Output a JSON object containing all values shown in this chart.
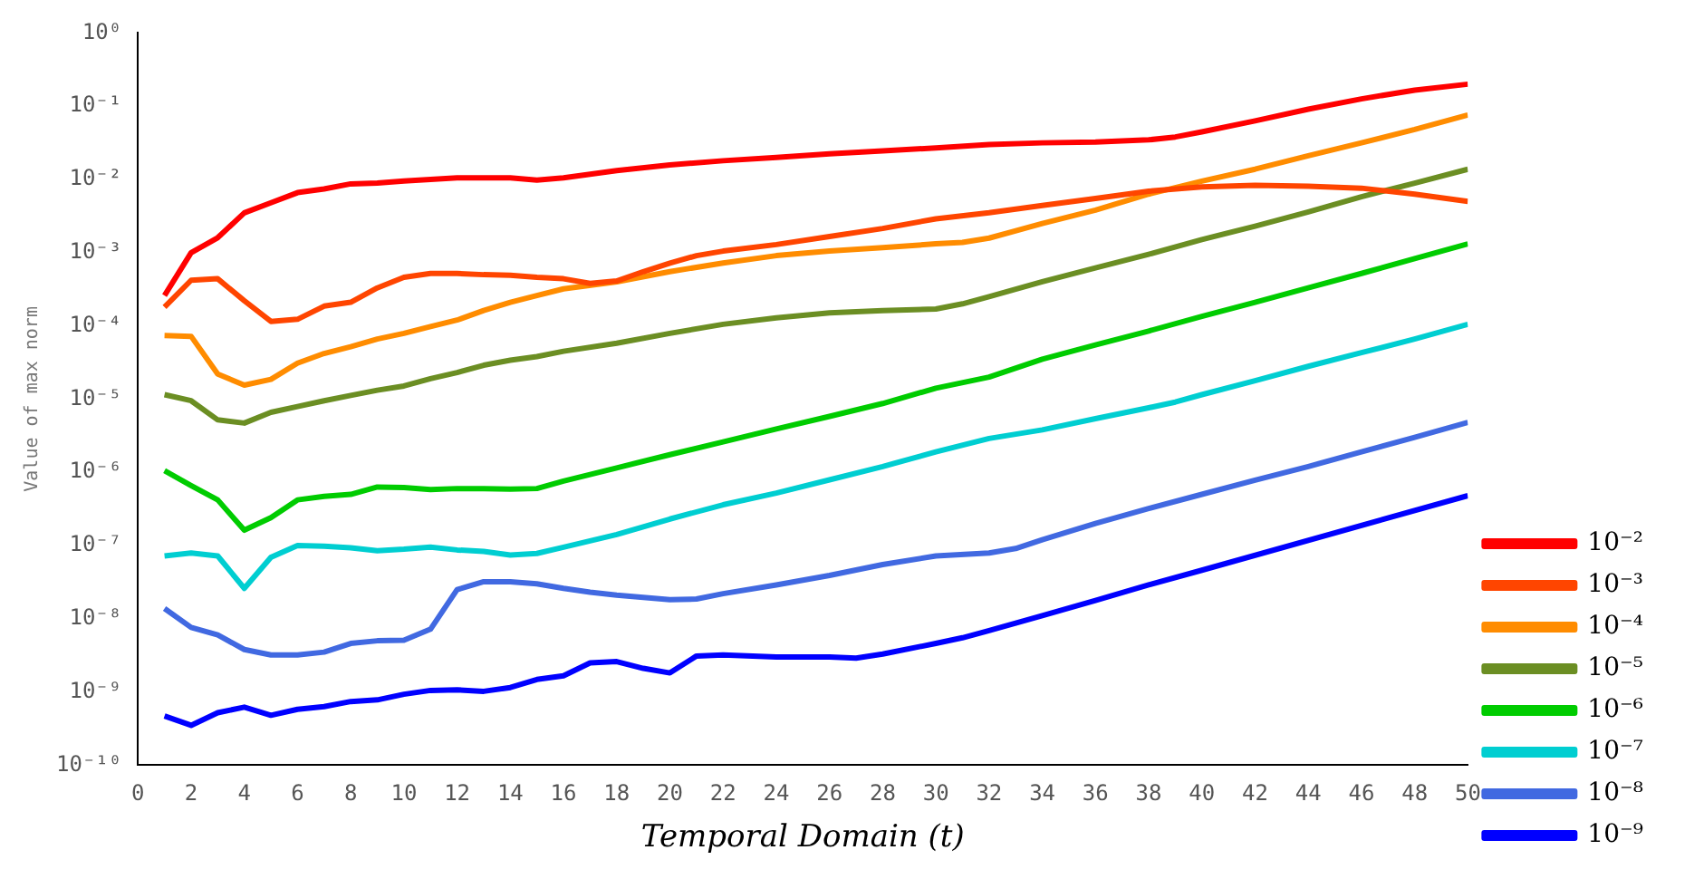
{
  "chart_data": {
    "type": "line",
    "xlabel": "Temporal Domain (t)",
    "ylabel": "Value of max norm",
    "xlim": [
      0,
      50
    ],
    "xticks": [
      0,
      2,
      4,
      6,
      8,
      10,
      12,
      14,
      16,
      18,
      20,
      22,
      24,
      26,
      28,
      30,
      32,
      34,
      36,
      38,
      40,
      42,
      44,
      46,
      48,
      50
    ],
    "ylim": [
      1e-10,
      1
    ],
    "yticks": [
      {
        "value": 1,
        "label": "10⁰"
      },
      {
        "value": 0.1,
        "label": "10⁻¹"
      },
      {
        "value": 0.01,
        "label": "10⁻²"
      },
      {
        "value": 0.001,
        "label": "10⁻³"
      },
      {
        "value": 0.0001,
        "label": "10⁻⁴"
      },
      {
        "value": 1e-05,
        "label": "10⁻⁵"
      },
      {
        "value": 1e-06,
        "label": "10⁻⁶"
      },
      {
        "value": 1e-07,
        "label": "10⁻⁷"
      },
      {
        "value": 1e-08,
        "label": "10⁻⁸"
      },
      {
        "value": 1e-09,
        "label": "10⁻⁹"
      },
      {
        "value": 1e-10,
        "label": "10⁻¹⁰"
      }
    ],
    "log": "y",
    "grid": false,
    "legend": "bottom right",
    "marker": "none",
    "line_style": "solid",
    "series": [
      {
        "name": "10⁻²",
        "color": "#ff0000",
        "x": [
          1,
          2,
          3,
          4,
          5,
          6,
          7,
          8,
          9,
          10,
          11,
          12,
          13,
          14,
          15,
          16,
          18,
          20,
          22,
          24,
          26,
          28,
          30,
          32,
          34,
          36,
          38,
          39,
          40,
          42,
          44,
          46,
          48,
          50
        ],
        "values": [
          0.00026,
          0.001,
          0.0016,
          0.0035,
          0.0048,
          0.0066,
          0.0074,
          0.0087,
          0.0089,
          0.0095,
          0.01,
          0.0105,
          0.0105,
          0.0105,
          0.0098,
          0.0105,
          0.0132,
          0.0158,
          0.018,
          0.02,
          0.0224,
          0.0245,
          0.027,
          0.03,
          0.0316,
          0.0324,
          0.0347,
          0.038,
          0.0447,
          0.063,
          0.091,
          0.126,
          0.166,
          0.2
        ]
      },
      {
        "name": "10⁻³",
        "color": "#ff4500",
        "x": [
          1,
          2,
          3,
          4,
          5,
          6,
          7,
          8,
          9,
          10,
          11,
          12,
          13,
          14,
          15,
          16,
          17,
          18,
          19,
          20,
          21,
          22,
          24,
          26,
          28,
          30,
          32,
          34,
          36,
          38,
          40,
          42,
          44,
          46,
          48,
          50
        ],
        "values": [
          0.00018,
          0.00042,
          0.00044,
          0.00022,
          0.000115,
          0.000123,
          0.000186,
          0.00021,
          0.00033,
          0.00046,
          0.00052,
          0.00052,
          0.0005,
          0.00049,
          0.00046,
          0.00044,
          0.00038,
          0.00041,
          0.00055,
          0.00072,
          0.00091,
          0.00105,
          0.00129,
          0.00166,
          0.00214,
          0.0029,
          0.0035,
          0.0044,
          0.0055,
          0.0069,
          0.0079,
          0.0083,
          0.0081,
          0.0076,
          0.0063,
          0.005
        ]
      },
      {
        "name": "10⁻⁴",
        "color": "#ff8c00",
        "x": [
          1,
          2,
          3,
          4,
          5,
          6,
          7,
          8,
          9,
          10,
          11,
          12,
          13,
          14,
          15,
          16,
          18,
          20,
          22,
          24,
          26,
          28,
          30,
          31,
          32,
          34,
          36,
          38,
          40,
          42,
          44,
          46,
          48,
          50
        ],
        "values": [
          7.4e-05,
          7.2e-05,
          2.2e-05,
          1.55e-05,
          1.86e-05,
          3.1e-05,
          4.2e-05,
          5.2e-05,
          6.6e-05,
          7.9e-05,
          9.8e-05,
          0.00012,
          0.000162,
          0.00021,
          0.00026,
          0.00032,
          0.0004,
          0.00055,
          0.00072,
          0.00091,
          0.00105,
          0.00117,
          0.00132,
          0.00138,
          0.00158,
          0.0025,
          0.0038,
          0.0063,
          0.0095,
          0.0138,
          0.021,
          0.0316,
          0.048,
          0.076
        ]
      },
      {
        "name": "10⁻⁵",
        "color": "#6b8e23",
        "x": [
          1,
          2,
          3,
          4,
          5,
          6,
          7,
          8,
          9,
          10,
          11,
          12,
          13,
          14,
          15,
          16,
          18,
          20,
          22,
          24,
          26,
          28,
          30,
          31,
          32,
          34,
          36,
          38,
          40,
          42,
          44,
          46,
          48,
          50
        ],
        "values": [
          1.15e-05,
          9.5e-06,
          5.2e-06,
          4.7e-06,
          6.6e-06,
          7.9e-06,
          9.5e-06,
          1.12e-05,
          1.32e-05,
          1.51e-05,
          1.9e-05,
          2.3e-05,
          2.9e-05,
          3.4e-05,
          3.8e-05,
          4.5e-05,
          5.8e-05,
          7.9e-05,
          0.000105,
          0.000129,
          0.000151,
          0.000162,
          0.00017,
          0.0002,
          0.00025,
          0.0004,
          0.00062,
          0.00095,
          0.00151,
          0.0023,
          0.0036,
          0.0058,
          0.0089,
          0.0138
        ]
      },
      {
        "name": "10⁻⁶",
        "color": "#00cc00",
        "x": [
          1,
          2,
          3,
          4,
          5,
          6,
          7,
          8,
          9,
          10,
          11,
          12,
          13,
          14,
          15,
          16,
          18,
          20,
          22,
          24,
          26,
          28,
          30,
          32,
          34,
          36,
          38,
          40,
          42,
          44,
          46,
          48,
          50
        ],
        "values": [
          1.05e-06,
          6.6e-07,
          4.2e-07,
          1.62e-07,
          2.4e-07,
          4.2e-07,
          4.7e-07,
          5e-07,
          6.3e-07,
          6.2e-07,
          5.8e-07,
          6e-07,
          6e-07,
          5.9e-07,
          6e-07,
          7.6e-07,
          1.15e-06,
          1.74e-06,
          2.6e-06,
          3.9e-06,
          5.8e-06,
          8.7e-06,
          1.41e-05,
          2e-05,
          3.5e-05,
          5.5e-05,
          8.5e-05,
          0.000135,
          0.00021,
          0.00033,
          0.00052,
          0.00083,
          0.00132
        ]
      },
      {
        "name": "10⁻⁷",
        "color": "#00ced1",
        "x": [
          1,
          2,
          3,
          4,
          5,
          6,
          7,
          8,
          9,
          10,
          11,
          12,
          13,
          14,
          15,
          16,
          18,
          20,
          22,
          24,
          26,
          28,
          30,
          32,
          34,
          36,
          38,
          39,
          40,
          42,
          44,
          46,
          48,
          50
        ],
        "values": [
          7.2e-08,
          7.9e-08,
          7.2e-08,
          2.6e-08,
          6.9e-08,
          1e-07,
          9.8e-08,
          9.3e-08,
          8.5e-08,
          8.9e-08,
          9.5e-08,
          8.7e-08,
          8.3e-08,
          7.4e-08,
          7.8e-08,
          9.5e-08,
          1.41e-07,
          2.3e-07,
          3.6e-07,
          5.2e-07,
          7.9e-07,
          1.2e-06,
          1.9e-06,
          2.9e-06,
          3.8e-06,
          5.4e-06,
          7.6e-06,
          9.1e-06,
          1.15e-05,
          1.78e-05,
          2.8e-05,
          4.3e-05,
          6.6e-05,
          0.000105
        ]
      },
      {
        "name": "10⁻⁸",
        "color": "#4169e1",
        "x": [
          1,
          2,
          3,
          4,
          5,
          6,
          7,
          8,
          9,
          10,
          11,
          12,
          13,
          14,
          15,
          16,
          17,
          18,
          20,
          21,
          22,
          24,
          26,
          28,
          30,
          32,
          33,
          34,
          36,
          38,
          40,
          42,
          44,
          46,
          48,
          50
        ],
        "values": [
          1.38e-08,
          7.6e-09,
          6e-09,
          3.8e-09,
          3.2e-09,
          3.2e-09,
          3.5e-09,
          4.6e-09,
          5e-09,
          5.1e-09,
          7.2e-09,
          2.5e-08,
          3.2e-08,
          3.2e-08,
          3e-08,
          2.6e-08,
          2.3e-08,
          2.1e-08,
          1.82e-08,
          1.86e-08,
          2.2e-08,
          2.9e-08,
          3.9e-08,
          5.5e-08,
          7.2e-08,
          7.9e-08,
          9.1e-08,
          1.2e-07,
          2e-07,
          3.2e-07,
          5e-07,
          7.8e-07,
          1.2e-06,
          1.9e-06,
          3e-06,
          4.8e-06
        ]
      },
      {
        "name": "10⁻⁹",
        "color": "#0000ff",
        "x": [
          1,
          2,
          3,
          4,
          5,
          6,
          7,
          8,
          9,
          10,
          11,
          12,
          13,
          14,
          15,
          16,
          17,
          18,
          19,
          20,
          21,
          22,
          24,
          26,
          27,
          28,
          30,
          31,
          32,
          33,
          34,
          36,
          38,
          40,
          50
        ],
        "values": [
          4.7e-10,
          3.5e-10,
          5.2e-10,
          6.2e-10,
          4.8e-10,
          5.8e-10,
          6.3e-10,
          7.4e-10,
          7.8e-10,
          9.3e-10,
          1.05e-09,
          1.07e-09,
          1.02e-09,
          1.15e-09,
          1.48e-09,
          1.66e-09,
          2.5e-09,
          2.6e-09,
          2.1e-09,
          1.82e-09,
          3.1e-09,
          3.2e-09,
          3e-09,
          3e-09,
          2.9e-09,
          3.3e-09,
          4.6e-09,
          5.5e-09,
          6.9e-09,
          8.7e-09,
          1.1e-08,
          1.78e-08,
          2.9e-08,
          4.6e-08,
          4.8e-07
        ]
      }
    ]
  }
}
